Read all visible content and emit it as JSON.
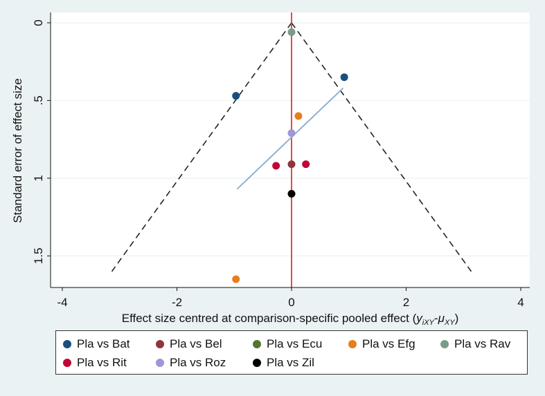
{
  "chart_data": {
    "type": "scatter",
    "title": "",
    "xlabel_main": "Effect size centred at comparison-specific pooled effect (",
    "xlabel_y": "y",
    "xlabel_y_sub": "iXY",
    "xlabel_minus": "-",
    "xlabel_mu": "μ",
    "xlabel_mu_sub": "XY",
    "xlabel_close": ")",
    "ylabel": "Standard error of effect size",
    "xlim": [
      -4,
      4
    ],
    "ylim": [
      0,
      1.65
    ],
    "y_reversed": true,
    "xticks": [
      -4,
      -2,
      0,
      2,
      4
    ],
    "xtick_labels": [
      "-4",
      "-2",
      "0",
      "2",
      "4"
    ],
    "yticks": [
      0,
      0.5,
      1,
      1.5
    ],
    "ytick_labels": [
      "0",
      ".5",
      "1",
      "1.5"
    ],
    "grid": "horizontal",
    "reference_line": {
      "x": 0,
      "color": "#e8322f"
    },
    "funnel": {
      "apex": [
        0,
        0
      ],
      "base_se": 1.6,
      "color": "#222222"
    },
    "regression_line": {
      "x": [
        -0.95,
        0.9
      ],
      "y": [
        1.07,
        0.42
      ],
      "color": "#8fb0d0"
    },
    "legend_position": "bottom",
    "series": [
      {
        "name": "Pla vs Bat",
        "color": "#1a4e7e",
        "points": [
          {
            "x": 0.92,
            "y": 0.35
          },
          {
            "x": -0.97,
            "y": 0.47
          }
        ]
      },
      {
        "name": "Pla vs Bel",
        "color": "#90353b",
        "points": [
          {
            "x": 0.0,
            "y": 0.91
          }
        ]
      },
      {
        "name": "Pla vs Ecu",
        "color": "#55752f",
        "points": []
      },
      {
        "name": "Pla vs Efg",
        "color": "#e87d1e",
        "points": [
          {
            "x": 0.12,
            "y": 0.6
          },
          {
            "x": -0.97,
            "y": 1.65
          }
        ]
      },
      {
        "name": "Pla vs Rav",
        "color": "#7a9b8a",
        "points": [
          {
            "x": 0.0,
            "y": 0.06
          }
        ]
      },
      {
        "name": "Pla vs Rit",
        "color": "#c10534",
        "points": [
          {
            "x": -0.27,
            "y": 0.92
          },
          {
            "x": 0.25,
            "y": 0.91
          }
        ]
      },
      {
        "name": "Pla vs Roz",
        "color": "#9d97d6",
        "points": [
          {
            "x": 0.0,
            "y": 0.71
          }
        ]
      },
      {
        "name": "Pla vs Zil",
        "color": "#000000",
        "points": [
          {
            "x": 0.0,
            "y": 1.1
          }
        ]
      }
    ]
  }
}
